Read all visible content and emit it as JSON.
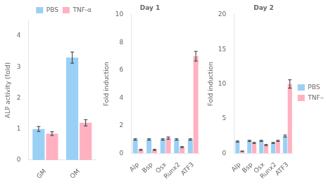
{
  "chart_data": [
    {
      "type": "bar",
      "categories": [
        "GM",
        "OM"
      ],
      "series": [
        {
          "name": "PBS",
          "values": [
            1.0,
            3.3
          ],
          "errors": [
            0.08,
            0.18
          ]
        },
        {
          "name": "TNF-α",
          "values": [
            0.85,
            1.2
          ],
          "errors": [
            0.06,
            0.1
          ]
        }
      ],
      "y_label": "ALP activity (fold)",
      "ylim": [
        0,
        4.5
      ],
      "yticks": [
        0,
        1,
        2,
        3,
        4
      ],
      "grid": false,
      "legend": "upper right"
    },
    {
      "type": "bar",
      "title": "Day 1",
      "categories": [
        "Alp",
        "Bsp",
        "Osx",
        "Runx2",
        "ATF3"
      ],
      "series": [
        {
          "name": "PBS",
          "values": [
            1.0,
            1.0,
            1.0,
            1.0,
            1.0
          ],
          "errors": [
            0.05,
            0.05,
            0.05,
            0.05,
            0.05
          ]
        },
        {
          "name": "TNF-α",
          "values": [
            0.25,
            0.25,
            1.1,
            0.45,
            7.0
          ],
          "errors": [
            0.04,
            0.04,
            0.08,
            0.04,
            0.35
          ]
        }
      ],
      "y_label": "Fold induction",
      "ylim": [
        0,
        10
      ],
      "yticks": [
        0,
        2,
        4,
        6,
        8,
        10
      ],
      "grid": false
    },
    {
      "type": "bar",
      "title": "Day 2",
      "categories": [
        "Alp",
        "Bsp",
        "Osx",
        "Runx2",
        "ATF3"
      ],
      "series": [
        {
          "name": "PBS",
          "values": [
            1.7,
            1.8,
            1.8,
            1.5,
            2.5
          ],
          "errors": [
            0.08,
            0.08,
            0.08,
            0.08,
            0.15
          ]
        },
        {
          "name": "TNF-α",
          "values": [
            0.3,
            1.5,
            1.2,
            1.8,
            10.0
          ],
          "errors": [
            0.04,
            0.08,
            0.08,
            0.08,
            0.6
          ]
        }
      ],
      "y_label": "Fold induction",
      "ylim": [
        0,
        20
      ],
      "yticks": [
        0,
        5,
        10,
        15,
        20
      ],
      "grid": false,
      "legend": "right"
    }
  ]
}
